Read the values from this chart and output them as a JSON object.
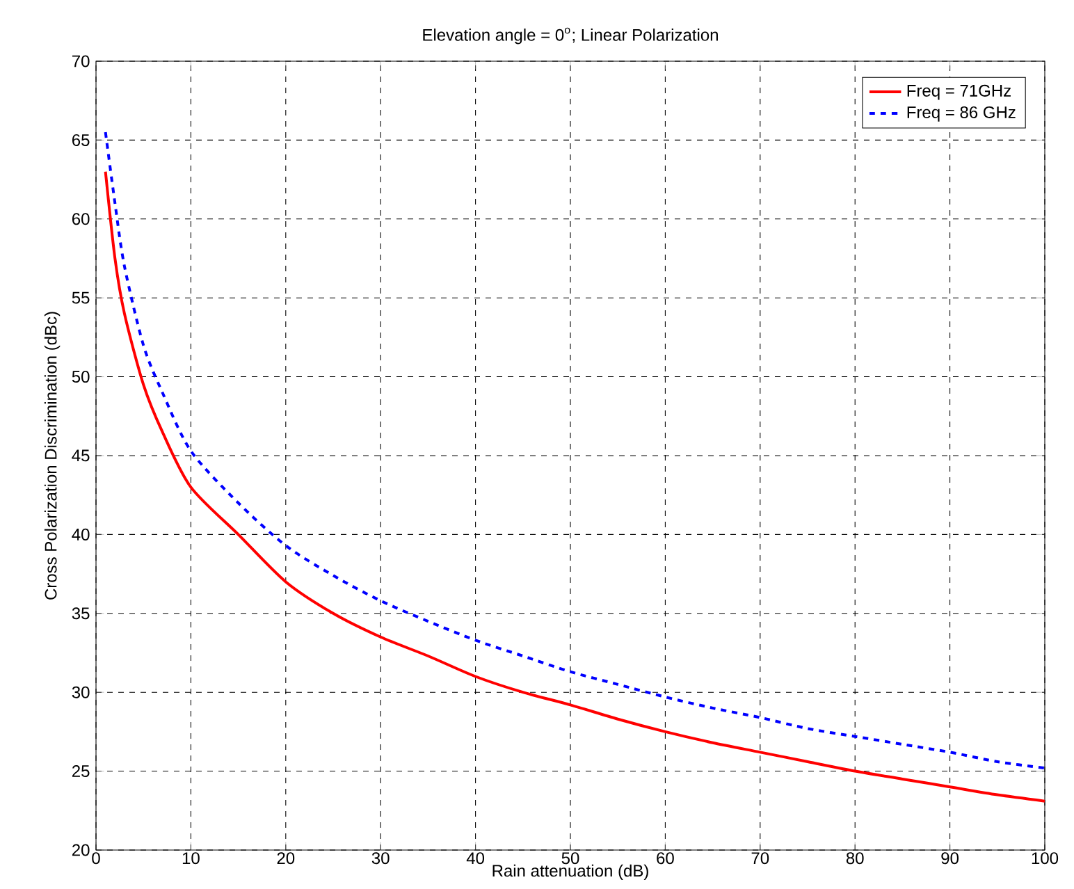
{
  "chart_data": {
    "type": "line",
    "title": "Elevation angle = 0$^{o}$; Linear Polarization",
    "xlabel": "Rain attenuation (dB)",
    "ylabel": "Cross Polarization Discrimination (dBc)",
    "x": [
      1,
      2,
      3,
      5,
      7,
      10,
      15,
      20,
      25,
      30,
      35,
      40,
      45,
      50,
      55,
      60,
      65,
      70,
      75,
      80,
      85,
      90,
      95,
      100
    ],
    "series": [
      {
        "name": "Freq = 71GHz",
        "color": "#ff0000",
        "line_style": "solid",
        "values": [
          63,
          57.5,
          54,
          49.5,
          46.5,
          43,
          40,
          37,
          35,
          33.5,
          32.3,
          31,
          30,
          29.2,
          28.3,
          27.5,
          26.8,
          26.2,
          25.6,
          25,
          24.5,
          24,
          23.5,
          23.1
        ]
      },
      {
        "name": "Freq = 86 GHz",
        "color": "#0000ff",
        "line_style": "dashed",
        "values": [
          65.5,
          61,
          57,
          52,
          49,
          45.3,
          42,
          39.3,
          37.4,
          35.8,
          34.5,
          33.3,
          32.3,
          31.3,
          30.5,
          29.7,
          29,
          28.4,
          27.7,
          27.2,
          26.7,
          26.2,
          25.6,
          25.2
        ]
      }
    ],
    "xlim": [
      0,
      100
    ],
    "ylim": [
      20,
      70
    ],
    "xticks": [
      0,
      10,
      20,
      30,
      40,
      50,
      60,
      70,
      80,
      90,
      100
    ],
    "yticks": [
      20,
      25,
      30,
      35,
      40,
      45,
      50,
      55,
      60,
      65,
      70
    ],
    "grid": true,
    "legend": "top right",
    "marker": "none"
  }
}
